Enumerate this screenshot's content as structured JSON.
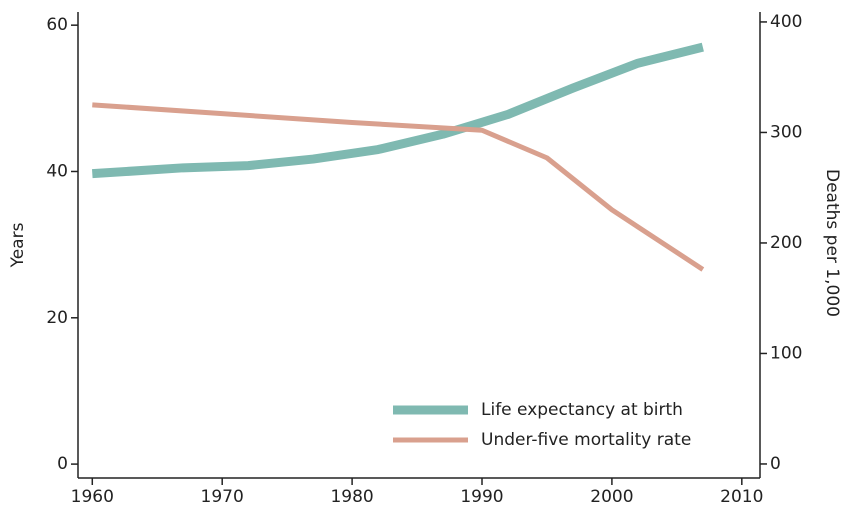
{
  "chart_data": {
    "type": "line",
    "y_label": "Years",
    "y2_label": "Deaths per 1,000",
    "series": [
      {
        "name": "Life expectancy at birth",
        "color": "#7fb9b1",
        "axis": "y",
        "x": [
          1960,
          1967,
          1972,
          1977,
          1982,
          1987,
          1992,
          1997,
          2002,
          2007
        ],
        "values": [
          39.7,
          40.5,
          40.8,
          41.7,
          43.0,
          45.1,
          47.8,
          51.4,
          54.8,
          57.0
        ]
      },
      {
        "name": "Under-five mortality rate",
        "color": "#d9a08e",
        "axis": "y2",
        "x": [
          1960,
          1970,
          1980,
          1990,
          1995,
          2000,
          2007
        ],
        "values": [
          325,
          317,
          309,
          302,
          277,
          230,
          176
        ]
      }
    ],
    "xlim": [
      1958.9,
      2011.4
    ],
    "xticks": [
      1960,
      1970,
      1980,
      1990,
      2000,
      2010
    ],
    "ylim": [
      -1.9,
      61.8
    ],
    "yticks": [
      0,
      20,
      40,
      60
    ],
    "y2lim": [
      -12.7,
      409
    ],
    "y2ticks": [
      0,
      100,
      200,
      300,
      400
    ],
    "legend": "lower right"
  }
}
